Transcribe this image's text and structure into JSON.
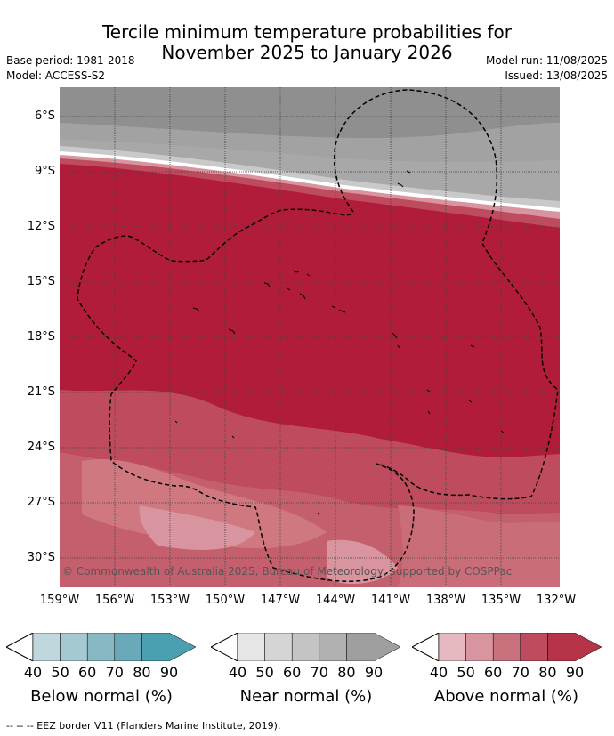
{
  "title_line1": "Tercile minimum temperature probabilities for",
  "title_line2": "November 2025 to January 2026",
  "base_period": "Base period: 1981-2018",
  "model": "Model: ACCESS-S2",
  "model_run": "Model run: 11/08/2025",
  "issued": "Issued: 13/08/2025",
  "lat_labels": [
    "6°S",
    "9°S",
    "12°S",
    "15°S",
    "18°S",
    "21°S",
    "24°S",
    "27°S",
    "30°S"
  ],
  "lon_labels": [
    "159°W",
    "156°W",
    "153°W",
    "150°W",
    "147°W",
    "144°W",
    "141°W",
    "138°W",
    "135°W",
    "132°W"
  ],
  "copyright": "© Commonwealth of Australia 2025, Bureau of Meteorology, supported by COSPPac",
  "legend": {
    "ticks": [
      "40",
      "50",
      "60",
      "70",
      "80",
      "90"
    ],
    "below_title": "Below normal (%)",
    "near_title": "Near normal (%)",
    "above_title": "Above normal (%)",
    "below_colors": [
      "#c0d7de",
      "#a5c9d1",
      "#88b8c4",
      "#6aa9b8",
      "#4aa0b0"
    ],
    "near_colors": [
      "#e6e6e6",
      "#d5d5d5",
      "#c4c4c4",
      "#b1b1b1",
      "#9f9f9f"
    ],
    "above_colors": [
      "#e6b9c0",
      "#d8959f",
      "#c7727d",
      "#bf4c5e",
      "#b63447"
    ]
  },
  "footnote": "--  --  -- EEZ border V11 (Flanders Marine Institute, 2019)."
}
